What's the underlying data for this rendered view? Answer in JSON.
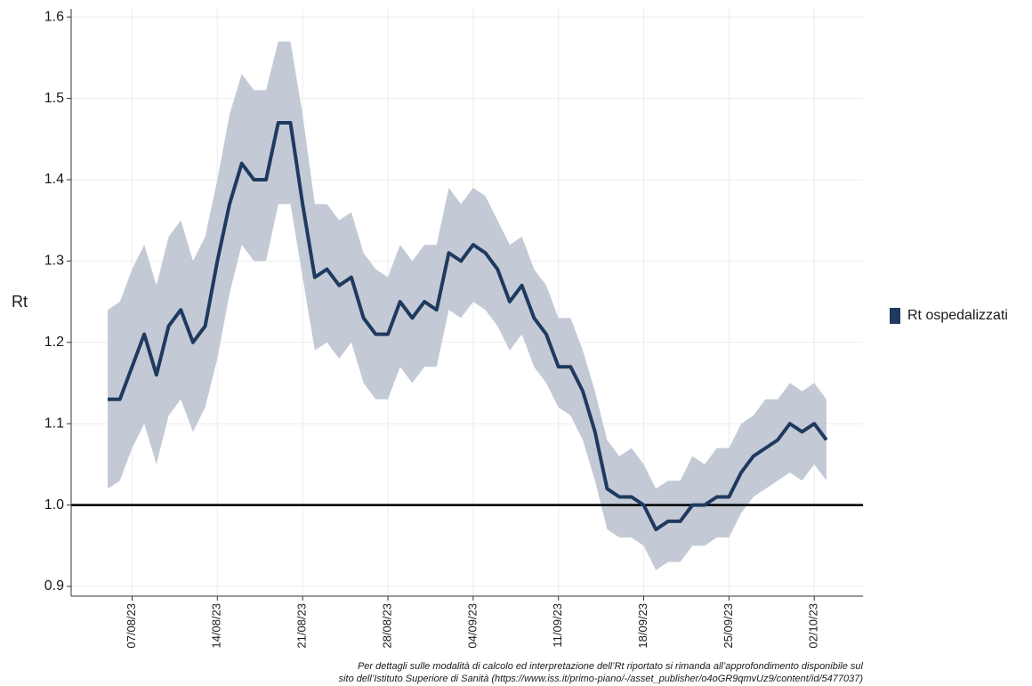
{
  "chart_data": {
    "type": "line",
    "y_label": "Rt",
    "x": [
      "05/08/23",
      "06/08/23",
      "07/08/23",
      "08/08/23",
      "09/08/23",
      "10/08/23",
      "11/08/23",
      "12/08/23",
      "13/08/23",
      "14/08/23",
      "15/08/23",
      "16/08/23",
      "17/08/23",
      "18/08/23",
      "19/08/23",
      "20/08/23",
      "21/08/23",
      "22/08/23",
      "23/08/23",
      "24/08/23",
      "25/08/23",
      "26/08/23",
      "27/08/23",
      "28/08/23",
      "29/08/23",
      "30/08/23",
      "31/08/23",
      "01/09/23",
      "02/09/23",
      "03/09/23",
      "04/09/23",
      "05/09/23",
      "06/09/23",
      "07/09/23",
      "08/09/23",
      "09/09/23",
      "10/09/23",
      "11/09/23",
      "12/09/23",
      "13/09/23",
      "14/09/23",
      "15/09/23",
      "16/09/23",
      "17/09/23",
      "18/09/23",
      "19/09/23",
      "20/09/23",
      "21/09/23",
      "22/09/23",
      "23/09/23",
      "24/09/23",
      "25/09/23",
      "26/09/23",
      "27/09/23",
      "28/09/23",
      "29/09/23",
      "30/09/23",
      "01/10/23",
      "02/10/23",
      "03/10/23"
    ],
    "series": [
      {
        "name": "Rt ospedalizzati",
        "color": "#1f3a5f",
        "band_color": "#c3cad6",
        "values": [
          1.13,
          1.13,
          1.17,
          1.21,
          1.16,
          1.22,
          1.24,
          1.2,
          1.22,
          1.3,
          1.37,
          1.42,
          1.4,
          1.4,
          1.47,
          1.47,
          1.37,
          1.28,
          1.29,
          1.27,
          1.28,
          1.23,
          1.21,
          1.21,
          1.25,
          1.23,
          1.25,
          1.24,
          1.31,
          1.3,
          1.32,
          1.31,
          1.29,
          1.25,
          1.27,
          1.23,
          1.21,
          1.17,
          1.17,
          1.14,
          1.09,
          1.02,
          1.01,
          1.01,
          1.0,
          0.97,
          0.98,
          0.98,
          1.0,
          1.0,
          1.01,
          1.01,
          1.04,
          1.06,
          1.07,
          1.08,
          1.1,
          1.09,
          1.1,
          1.08
        ],
        "lower": [
          1.02,
          1.03,
          1.07,
          1.1,
          1.05,
          1.11,
          1.13,
          1.09,
          1.12,
          1.18,
          1.26,
          1.32,
          1.3,
          1.3,
          1.37,
          1.37,
          1.28,
          1.19,
          1.2,
          1.18,
          1.2,
          1.15,
          1.13,
          1.13,
          1.17,
          1.15,
          1.17,
          1.17,
          1.24,
          1.23,
          1.25,
          1.24,
          1.22,
          1.19,
          1.21,
          1.17,
          1.15,
          1.12,
          1.11,
          1.08,
          1.03,
          0.97,
          0.96,
          0.96,
          0.95,
          0.92,
          0.93,
          0.93,
          0.95,
          0.95,
          0.96,
          0.96,
          0.99,
          1.01,
          1.02,
          1.03,
          1.04,
          1.03,
          1.05,
          1.03
        ],
        "upper": [
          1.24,
          1.25,
          1.29,
          1.32,
          1.27,
          1.33,
          1.35,
          1.3,
          1.33,
          1.4,
          1.48,
          1.53,
          1.51,
          1.51,
          1.57,
          1.57,
          1.48,
          1.37,
          1.37,
          1.35,
          1.36,
          1.31,
          1.29,
          1.28,
          1.32,
          1.3,
          1.32,
          1.32,
          1.39,
          1.37,
          1.39,
          1.38,
          1.35,
          1.32,
          1.33,
          1.29,
          1.27,
          1.23,
          1.23,
          1.19,
          1.14,
          1.08,
          1.06,
          1.07,
          1.05,
          1.02,
          1.03,
          1.03,
          1.06,
          1.05,
          1.07,
          1.07,
          1.1,
          1.11,
          1.13,
          1.13,
          1.15,
          1.14,
          1.15,
          1.13
        ]
      }
    ],
    "xlim": [
      "02/08/23",
      "06/10/23"
    ],
    "xticks": [
      "07/08/23",
      "14/08/23",
      "21/08/23",
      "28/08/23",
      "04/09/23",
      "11/09/23",
      "18/09/23",
      "25/09/23",
      "02/10/23"
    ],
    "ylim": [
      0.888,
      1.61
    ],
    "yticks": [
      0.9,
      {
        "value": 1,
        "label": "1.0"
      },
      1.1,
      1.2,
      1.3,
      1.4,
      1.5,
      1.6
    ],
    "hline": 1,
    "grid": true,
    "legend": "right",
    "notes": [
      "Per dettagli sulle modalità di calcolo ed interpretazione dell’Rt riportato si rimanda all’approfondimento disponibile sul",
      "sito dell’Istituto Superiore di Sanità (https://www.iss.it/primo-piano/-/asset_publisher/o4oGR9qmvUz9/content/id/5477037)"
    ]
  }
}
